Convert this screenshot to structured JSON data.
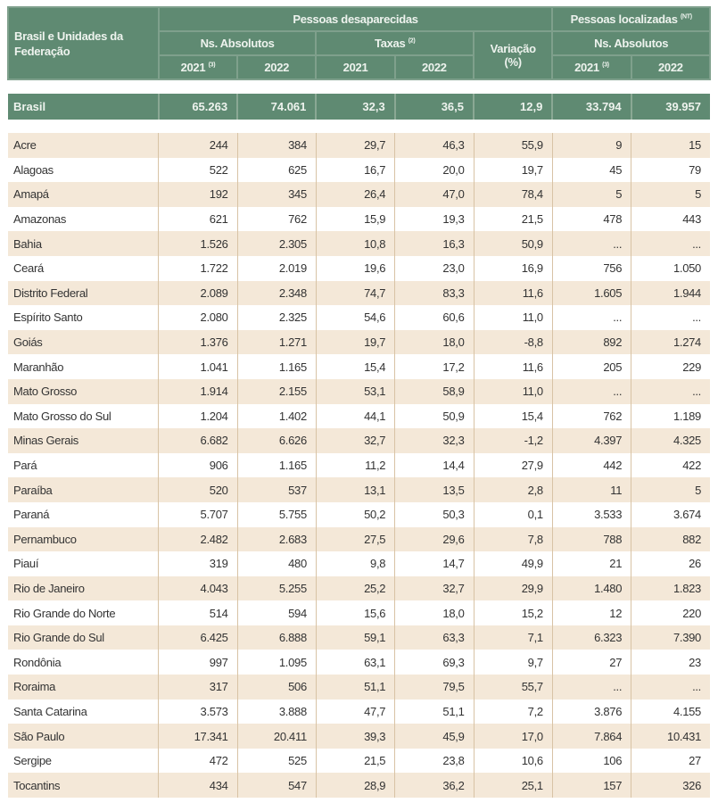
{
  "header": {
    "region_label": "Brasil e Unidades da Federação",
    "missing_group": "Pessoas desaparecidas",
    "found_group": "Pessoas localizadas",
    "found_note": "(NT)",
    "abs_label": "Ns. Absolutos",
    "rates_label": "Taxas",
    "rates_note": "(2)",
    "variation_label": "Variação",
    "variation_unit": "(%)",
    "abs_label_2": "Ns. Absolutos",
    "years": [
      "2021",
      "2022",
      "2021",
      "2022",
      "2021",
      "2022"
    ],
    "year_note": "(3)"
  },
  "brasil": [
    "Brasil",
    "65.263",
    "74.061",
    "32,3",
    "36,5",
    "12,9",
    "33.794",
    "39.957"
  ],
  "rows": [
    [
      "Acre",
      "244",
      "384",
      "29,7",
      "46,3",
      "55,9",
      "9",
      "15"
    ],
    [
      "Alagoas",
      "522",
      "625",
      "16,7",
      "20,0",
      "19,7",
      "45",
      "79"
    ],
    [
      "Amapá",
      "192",
      "345",
      "26,4",
      "47,0",
      "78,4",
      "5",
      "5"
    ],
    [
      "Amazonas",
      "621",
      "762",
      "15,9",
      "19,3",
      "21,5",
      "478",
      "443"
    ],
    [
      "Bahia",
      "1.526",
      "2.305",
      "10,8",
      "16,3",
      "50,9",
      "...",
      "..."
    ],
    [
      "Ceará",
      "1.722",
      "2.019",
      "19,6",
      "23,0",
      "16,9",
      "756",
      "1.050"
    ],
    [
      "Distrito Federal",
      "2.089",
      "2.348",
      "74,7",
      "83,3",
      "11,6",
      "1.605",
      "1.944"
    ],
    [
      "Espírito Santo",
      "2.080",
      "2.325",
      "54,6",
      "60,6",
      "11,0",
      "...",
      "..."
    ],
    [
      "Goiás",
      "1.376",
      "1.271",
      "19,7",
      "18,0",
      "-8,8",
      "892",
      "1.274"
    ],
    [
      "Maranhão",
      "1.041",
      "1.165",
      "15,4",
      "17,2",
      "11,6",
      "205",
      "229"
    ],
    [
      "Mato Grosso",
      "1.914",
      "2.155",
      "53,1",
      "58,9",
      "11,0",
      "...",
      "..."
    ],
    [
      "Mato Grosso do Sul",
      "1.204",
      "1.402",
      "44,1",
      "50,9",
      "15,4",
      "762",
      "1.189"
    ],
    [
      "Minas Gerais",
      "6.682",
      "6.626",
      "32,7",
      "32,3",
      "-1,2",
      "4.397",
      "4.325"
    ],
    [
      "Pará",
      "906",
      "1.165",
      "11,2",
      "14,4",
      "27,9",
      "442",
      "422"
    ],
    [
      "Paraíba",
      "520",
      "537",
      "13,1",
      "13,5",
      "2,8",
      "11",
      "5"
    ],
    [
      "Paraná",
      "5.707",
      "5.755",
      "50,2",
      "50,3",
      "0,1",
      "3.533",
      "3.674"
    ],
    [
      "Pernambuco",
      "2.482",
      "2.683",
      "27,5",
      "29,6",
      "7,8",
      "788",
      "882"
    ],
    [
      "Piauí",
      "319",
      "480",
      "9,8",
      "14,7",
      "49,9",
      "21",
      "26"
    ],
    [
      "Rio de Janeiro",
      "4.043",
      "5.255",
      "25,2",
      "32,7",
      "29,9",
      "1.480",
      "1.823"
    ],
    [
      "Rio Grande do Norte",
      "514",
      "594",
      "15,6",
      "18,0",
      "15,2",
      "12",
      "220"
    ],
    [
      "Rio Grande do Sul",
      "6.425",
      "6.888",
      "59,1",
      "63,3",
      "7,1",
      "6.323",
      "7.390"
    ],
    [
      "Rondônia",
      "997",
      "1.095",
      "63,1",
      "69,3",
      "9,7",
      "27",
      "23"
    ],
    [
      "Roraima",
      "317",
      "506",
      "51,1",
      "79,5",
      "55,7",
      "...",
      "..."
    ],
    [
      "Santa Catarina",
      "3.573",
      "3.888",
      "47,7",
      "51,1",
      "7,2",
      "3.876",
      "4.155"
    ],
    [
      "São Paulo",
      "17.341",
      "20.411",
      "39,3",
      "45,9",
      "17,0",
      "7.864",
      "10.431"
    ],
    [
      "Sergipe",
      "472",
      "525",
      "21,5",
      "23,8",
      "10,6",
      "106",
      "27"
    ],
    [
      "Tocantins",
      "434",
      "547",
      "28,9",
      "36,2",
      "25,1",
      "157",
      "326"
    ]
  ]
}
